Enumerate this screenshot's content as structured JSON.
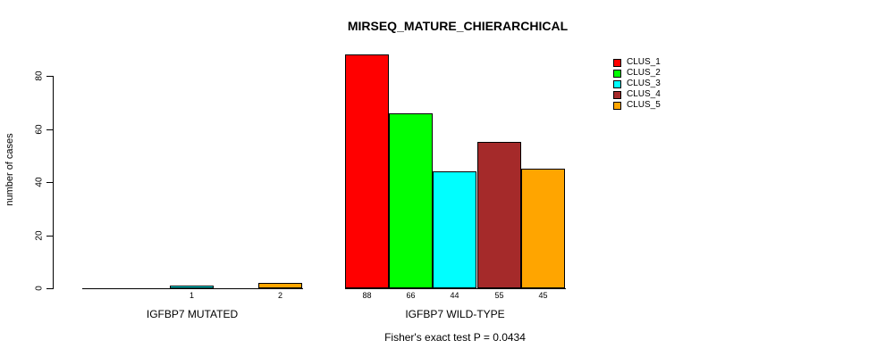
{
  "chart_data": {
    "type": "bar",
    "title": "MIRSEQ_MATURE_CHIERARCHICAL",
    "ylabel": "number of cases",
    "footnote": "Fisher's exact test P = 0.0434",
    "categories": [
      "IGFBP7 MUTATED",
      "IGFBP7 WILD-TYPE"
    ],
    "yticks": [
      0,
      20,
      40,
      60,
      80
    ],
    "ylim": [
      0,
      88
    ],
    "grid": false,
    "legend_position": "top-right",
    "series": [
      {
        "name": "CLUS_1",
        "color": "#FF0000",
        "values": [
          0,
          88
        ]
      },
      {
        "name": "CLUS_2",
        "color": "#00FF00",
        "values": [
          0,
          66
        ]
      },
      {
        "name": "CLUS_3",
        "color": "#00FFFF",
        "values": [
          1,
          44
        ]
      },
      {
        "name": "CLUS_4",
        "color": "#A52A2A",
        "values": [
          0,
          55
        ]
      },
      {
        "name": "CLUS_5",
        "color": "#FFA500",
        "values": [
          2,
          45
        ]
      }
    ]
  }
}
